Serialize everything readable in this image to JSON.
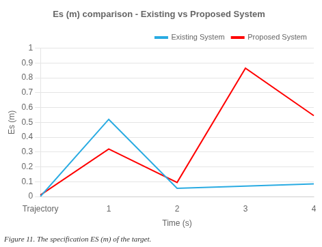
{
  "chart_data": {
    "type": "line",
    "title": "Es (m) comparison - Existing vs Proposed System",
    "xlabel": "Time (s)",
    "ylabel": "Es (m)",
    "caption": "Figure 11. The specification ES (m) of the target.",
    "categories": [
      "Trajectory",
      "1",
      "2",
      "3",
      "4"
    ],
    "series": [
      {
        "name": "Existing System",
        "color": "#29ABE2",
        "values": [
          0.0,
          0.52,
          0.055,
          0.07,
          0.085
        ]
      },
      {
        "name": "Proposed System",
        "color": "#FF0000",
        "values": [
          0.01,
          0.32,
          0.095,
          0.865,
          0.545
        ]
      }
    ],
    "ylim": [
      0,
      1.0
    ],
    "yticks": [
      0,
      0.1,
      0.2,
      0.3,
      0.4,
      0.5,
      0.6,
      0.7,
      0.8,
      0.9,
      1
    ],
    "grid": "y",
    "legend": "upper right"
  }
}
